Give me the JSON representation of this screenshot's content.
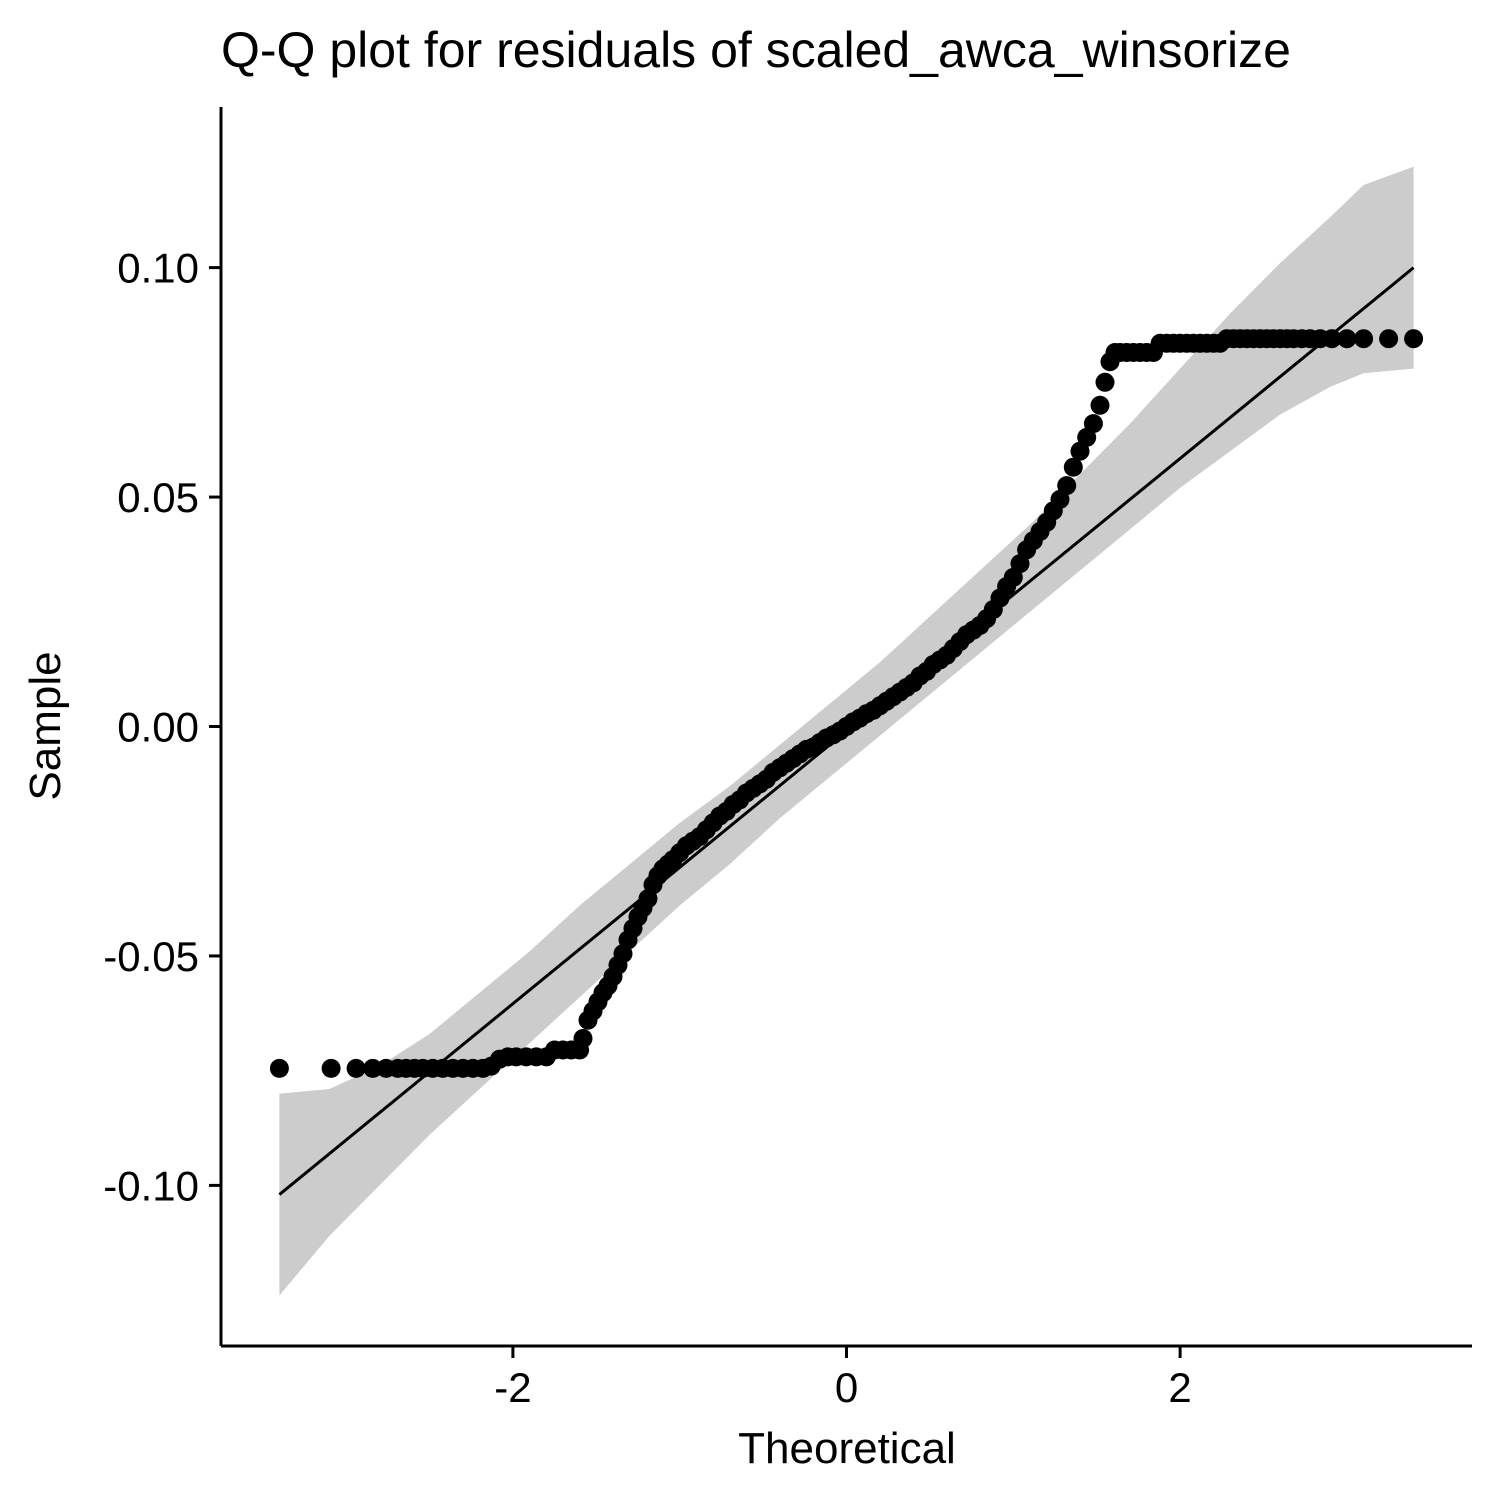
{
  "chart_data": {
    "type": "scatter",
    "title": "Q-Q plot for residuals of scaled_awca_winsorize",
    "xlabel": "Theoretical",
    "ylabel": "Sample",
    "xlim": [
      -3.75,
      3.75
    ],
    "ylim": [
      -0.135,
      0.135
    ],
    "x_ticks": [
      -2,
      0,
      2
    ],
    "x_tick_labels": [
      "-2",
      "0",
      "2"
    ],
    "y_ticks": [
      -0.1,
      -0.05,
      0.0,
      0.05,
      0.1
    ],
    "y_tick_labels": [
      "-0.10",
      "-0.05",
      "0.00",
      "0.05",
      "0.10"
    ],
    "grid": false,
    "legend": "none",
    "colors": {
      "points": "#000000",
      "line": "#000000",
      "band": "#cccccc"
    },
    "reference_line": {
      "x": [
        -3.4,
        3.4
      ],
      "y": [
        -0.102,
        0.1
      ]
    },
    "confidence_band": {
      "x": [
        -3.4,
        -3.1,
        -2.8,
        -2.5,
        -2.2,
        -1.9,
        -1.6,
        -1.3,
        -1.0,
        -0.7,
        -0.4,
        -0.1,
        0.2,
        0.5,
        0.8,
        1.1,
        1.4,
        1.7,
        2.0,
        2.3,
        2.6,
        2.9,
        3.1,
        3.4
      ],
      "lower": [
        -0.124,
        -0.111,
        -0.1,
        -0.089,
        -0.079,
        -0.069,
        -0.059,
        -0.049,
        -0.039,
        -0.03,
        -0.02,
        -0.011,
        -0.002,
        0.007,
        0.016,
        0.025,
        0.034,
        0.043,
        0.052,
        0.06,
        0.068,
        0.074,
        0.077,
        0.078
      ],
      "upper": [
        -0.08,
        -0.079,
        -0.074,
        -0.067,
        -0.058,
        -0.049,
        -0.039,
        -0.03,
        -0.021,
        -0.013,
        -0.004,
        0.005,
        0.014,
        0.024,
        0.034,
        0.044,
        0.055,
        0.066,
        0.078,
        0.09,
        0.101,
        0.111,
        0.118,
        0.122
      ]
    },
    "series": [
      {
        "x": [
          -3.4,
          -3.09,
          -2.94,
          -2.84,
          -2.76,
          -2.69,
          -2.64,
          -2.59,
          -2.54,
          -2.48,
          -2.42,
          -2.36,
          -2.3,
          -2.24,
          -2.18,
          -2.13,
          -2.08,
          -2.03,
          -1.98,
          -1.92,
          -1.86,
          -1.8,
          -1.75,
          -1.7,
          -1.65,
          -1.6,
          -1.58,
          -1.55,
          -1.52,
          -1.49,
          -1.46,
          -1.43,
          -1.4,
          -1.37,
          -1.34,
          -1.31,
          -1.28,
          -1.25,
          -1.22,
          -1.19,
          -1.16,
          -1.13,
          -1.1,
          -1.07,
          -1.04,
          -1.0,
          -0.96,
          -0.92,
          -0.88,
          -0.84,
          -0.8,
          -0.76,
          -0.72,
          -0.68,
          -0.64,
          -0.6,
          -0.56,
          -0.52,
          -0.48,
          -0.44,
          -0.4,
          -0.36,
          -0.32,
          -0.28,
          -0.24,
          -0.2,
          -0.16,
          -0.12,
          -0.08,
          -0.04,
          0.0,
          0.04,
          0.08,
          0.12,
          0.16,
          0.2,
          0.24,
          0.28,
          0.32,
          0.36,
          0.4,
          0.44,
          0.48,
          0.52,
          0.56,
          0.6,
          0.64,
          0.68,
          0.72,
          0.76,
          0.8,
          0.84,
          0.88,
          0.92,
          0.96,
          1.0,
          1.04,
          1.08,
          1.12,
          1.16,
          1.2,
          1.24,
          1.28,
          1.32,
          1.36,
          1.4,
          1.44,
          1.48,
          1.52,
          1.55,
          1.58,
          1.61,
          1.64,
          1.68,
          1.72,
          1.76,
          1.8,
          1.84,
          1.88,
          1.92,
          1.96,
          2.0,
          2.04,
          2.08,
          2.12,
          2.16,
          2.2,
          2.24,
          2.28,
          2.32,
          2.36,
          2.4,
          2.44,
          2.48,
          2.52,
          2.56,
          2.6,
          2.64,
          2.68,
          2.73,
          2.78,
          2.84,
          2.91,
          3.0,
          3.1,
          3.25,
          3.4
        ],
        "y": [
          -0.0745,
          -0.0745,
          -0.0745,
          -0.0745,
          -0.0745,
          -0.0745,
          -0.0745,
          -0.0745,
          -0.0745,
          -0.0745,
          -0.0745,
          -0.0745,
          -0.0745,
          -0.0745,
          -0.0745,
          -0.074,
          -0.0725,
          -0.072,
          -0.072,
          -0.072,
          -0.072,
          -0.072,
          -0.0705,
          -0.0705,
          -0.0705,
          -0.0705,
          -0.068,
          -0.064,
          -0.062,
          -0.06,
          -0.058,
          -0.0565,
          -0.0545,
          -0.052,
          -0.0495,
          -0.0465,
          -0.044,
          -0.0415,
          -0.0395,
          -0.0375,
          -0.0345,
          -0.0325,
          -0.031,
          -0.03,
          -0.029,
          -0.0275,
          -0.026,
          -0.025,
          -0.024,
          -0.0225,
          -0.021,
          -0.0195,
          -0.0185,
          -0.017,
          -0.016,
          -0.0145,
          -0.0135,
          -0.0125,
          -0.0115,
          -0.01,
          -0.009,
          -0.008,
          -0.007,
          -0.006,
          -0.005,
          -0.0045,
          -0.0035,
          -0.0025,
          -0.0018,
          -0.001,
          0.0,
          0.001,
          0.0018,
          0.0028,
          0.0035,
          0.0045,
          0.0055,
          0.0065,
          0.0075,
          0.0085,
          0.0095,
          0.011,
          0.012,
          0.0135,
          0.0145,
          0.0155,
          0.017,
          0.0185,
          0.02,
          0.021,
          0.022,
          0.0235,
          0.0255,
          0.028,
          0.0305,
          0.0325,
          0.0355,
          0.0385,
          0.0405,
          0.0425,
          0.0445,
          0.047,
          0.0495,
          0.0525,
          0.0565,
          0.06,
          0.063,
          0.066,
          0.07,
          0.075,
          0.0795,
          0.0815,
          0.0815,
          0.0815,
          0.0815,
          0.0815,
          0.0815,
          0.0815,
          0.0835,
          0.0835,
          0.0835,
          0.0835,
          0.0835,
          0.0835,
          0.0835,
          0.0835,
          0.0835,
          0.0835,
          0.0845,
          0.0845,
          0.0845,
          0.0845,
          0.0845,
          0.0845,
          0.0845,
          0.0845,
          0.0845,
          0.0845,
          0.0845,
          0.0845,
          0.0845,
          0.0845,
          0.0845,
          0.0845,
          0.0845,
          0.0845,
          0.0845
        ]
      }
    ]
  }
}
